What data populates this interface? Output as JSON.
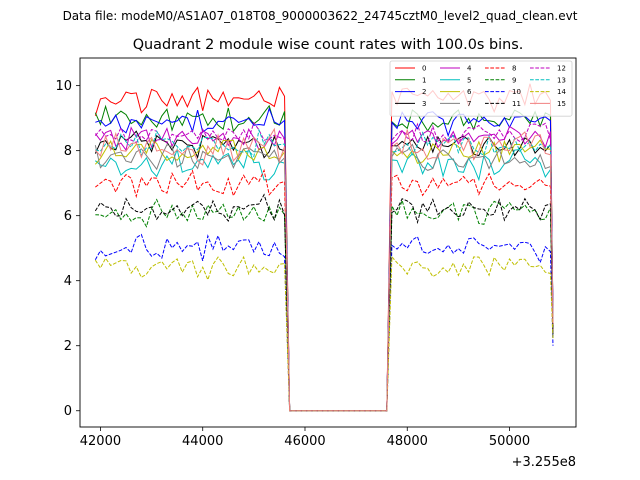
{
  "chart_data": {
    "type": "line",
    "suptitle": "Data file: modeM0/AS1A07_018T08_9000003622_24745cztM0_level2_quad_clean.evt",
    "title": "Quadrant 2 module wise count rates with 100.0s bins.",
    "xlabel": "",
    "ylabel": "",
    "x_offset_label": "+3.255e8",
    "xlim": [
      41600,
      51300
    ],
    "ylim": [
      -0.5,
      10.85
    ],
    "xticks": [
      42000,
      44000,
      46000,
      48000,
      50000
    ],
    "yticks": [
      0,
      2,
      4,
      6,
      8,
      10
    ],
    "legend": {
      "position": "top-right",
      "ncol": 4
    },
    "segments": [
      {
        "start": 41900,
        "end": 45600,
        "step": 100
      },
      {
        "start": 45700,
        "end": 47600,
        "step": 100
      },
      {
        "start": 47700,
        "end": 50800,
        "step": 100
      },
      {
        "start": 50850,
        "end": 50850,
        "step": 100
      }
    ],
    "series": [
      {
        "name": "0",
        "color": "#ff0000",
        "dash": "solid",
        "base": 9.6,
        "amp": 0.35,
        "end": 2.7
      },
      {
        "name": "1",
        "color": "#008000",
        "dash": "solid",
        "base": 9.0,
        "amp": 0.3,
        "end": 2.9
      },
      {
        "name": "2",
        "color": "#0000ff",
        "dash": "solid",
        "base": 8.9,
        "amp": 0.3,
        "end": 2.8
      },
      {
        "name": "3",
        "color": "#000000",
        "dash": "solid",
        "base": 8.2,
        "amp": 0.3,
        "end": 2.6
      },
      {
        "name": "4",
        "color": "#bf00bf",
        "dash": "solid",
        "base": 8.4,
        "amp": 0.3,
        "end": 2.8
      },
      {
        "name": "5",
        "color": "#00bfbf",
        "dash": "solid",
        "base": 7.6,
        "amp": 0.35,
        "end": 2.5
      },
      {
        "name": "6",
        "color": "#bfbf00",
        "dash": "solid",
        "base": 8.0,
        "amp": 0.3,
        "end": 2.6
      },
      {
        "name": "7",
        "color": "#808080",
        "dash": "solid",
        "base": 7.8,
        "amp": 0.35,
        "end": 2.5
      },
      {
        "name": "8",
        "color": "#ff0000",
        "dash": "dashed",
        "base": 7.0,
        "amp": 0.3,
        "end": 2.4
      },
      {
        "name": "9",
        "color": "#008000",
        "dash": "dashed",
        "base": 6.1,
        "amp": 0.3,
        "end": 2.2
      },
      {
        "name": "10",
        "color": "#0000ff",
        "dash": "dashed",
        "base": 5.0,
        "amp": 0.3,
        "end": 2.0
      },
      {
        "name": "11",
        "color": "#000000",
        "dash": "dashed",
        "base": 6.2,
        "amp": 0.35,
        "end": 2.3
      },
      {
        "name": "12",
        "color": "#bf00bf",
        "dash": "dashed",
        "base": 8.5,
        "amp": 0.3,
        "end": 2.9
      },
      {
        "name": "13",
        "color": "#00bfbf",
        "dash": "dashed",
        "base": 8.2,
        "amp": 0.3,
        "end": 2.8
      },
      {
        "name": "14",
        "color": "#bfbf00",
        "dash": "dashed",
        "base": 4.4,
        "amp": 0.3,
        "end": 2.2
      },
      {
        "name": "15",
        "color": "#f08080",
        "dash": "solid",
        "base": 8.1,
        "amp": 0.4,
        "end": 2.7
      }
    ]
  }
}
